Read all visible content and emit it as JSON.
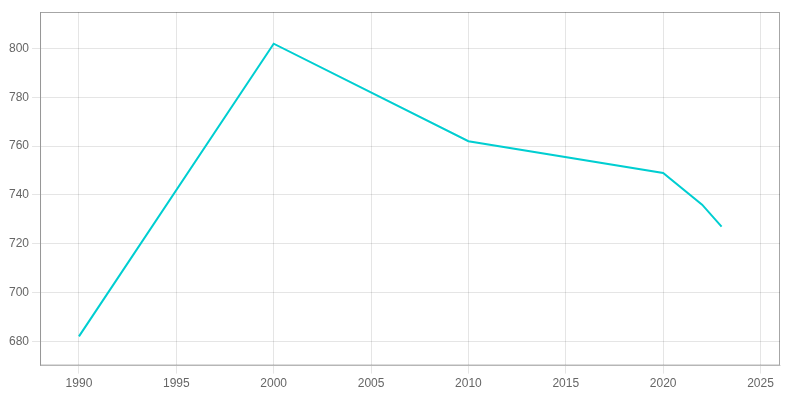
{
  "chart_data": {
    "type": "line",
    "x": [
      1990,
      2000,
      2010,
      2020,
      2022,
      2023
    ],
    "values": [
      682,
      802,
      762,
      749,
      736,
      727
    ],
    "color": "#00CED1",
    "xlim": [
      1988,
      2026
    ],
    "xticks": [
      1990,
      1995,
      2000,
      2005,
      2010,
      2015,
      2020,
      2025
    ],
    "ylim": [
      670,
      815
    ],
    "yticks": [
      680,
      700,
      720,
      740,
      760,
      780,
      800
    ],
    "grid": true
  }
}
